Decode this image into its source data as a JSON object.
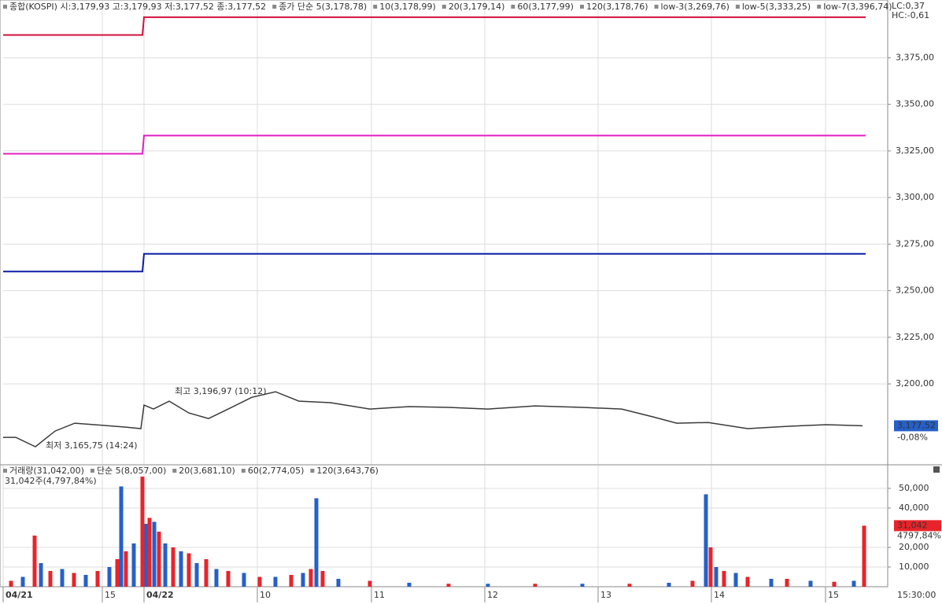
{
  "chart_data": [
    {
      "type": "line",
      "legend": [
        {
          "text": "종합(KOSPI) 시:3,179,93 고:3,179,93 저:3,177,52 종:3,177,52",
          "color": "#000000"
        },
        {
          "text": "종가 단순 5(3,178,78)",
          "color": "#c0208c"
        },
        {
          "text": "10(3,178,99)",
          "color": "#1a1a60"
        },
        {
          "text": "20(3,179,14)",
          "color": "#d8a000"
        },
        {
          "text": "60(3,177,99)",
          "color": "#208020"
        },
        {
          "text": "120(3,178,76)",
          "color": "#666666"
        },
        {
          "text": "low-3(3,269,76)",
          "color": "#0b1fa8"
        },
        {
          "text": "low-5(3,333,25)",
          "color": "#d020c0"
        },
        {
          "text": "low-7(3,396,74)",
          "color": "#d0103c"
        }
      ],
      "corner_labels": [
        "LC:0,37",
        "HC:-0,61"
      ],
      "last_label": "3,177,52",
      "last_change": "-0,08%",
      "annotations": [
        "최고 3,196,97 (10:12)",
        "최저 3,165,75 (14:24)"
      ],
      "series": [
        {
          "color": "#3a3a3a",
          "x": [
            0,
            16,
            41,
            66,
            91,
            116,
            156,
            175,
            179,
            191,
            211,
            236,
            261,
            286,
            316,
            346,
            376,
            416,
            466,
            516,
            566,
            616,
            676,
            736,
            786,
            826,
            856,
            896,
            946,
            996,
            1046,
            1092
          ],
          "values": [
            3171.3,
            3171.3,
            3166.3,
            3174.7,
            3178.9,
            3178.1,
            3176.8,
            3176,
            3188.6,
            3186.5,
            3190.7,
            3184.4,
            3181.4,
            3186.5,
            3192.8,
            3195.8,
            3190.7,
            3189.9,
            3186.5,
            3187.8,
            3187.4,
            3186.5,
            3188.2,
            3187.4,
            3186.5,
            3182.3,
            3178.9,
            3179.3,
            3176,
            3177.2,
            3178.1,
            3177.52
          ]
        },
        {
          "color": "#0b1fa8",
          "x": [
            0,
            177,
            179,
            1096
          ],
          "values": [
            3260.3,
            3260.3,
            3269.76,
            3269.76
          ]
        },
        {
          "color": "#e020c0",
          "x": [
            0,
            177,
            179,
            1096
          ],
          "values": [
            3323.5,
            3323.5,
            3333.25,
            3333.25
          ]
        },
        {
          "color": "#d0103c",
          "x": [
            0,
            177,
            179,
            1096
          ],
          "values": [
            3387.2,
            3387.2,
            3396.74,
            3396.74
          ]
        }
      ],
      "xlim": [
        0,
        1124
      ],
      "xticks": [
        126,
        179,
        323,
        468,
        612,
        756,
        900,
        1045
      ],
      "ylim": [
        3157,
        3406
      ],
      "yticks": [
        {
          "value": 3200,
          "label": "3,200,00"
        },
        {
          "value": 3225,
          "label": "3,225,00"
        },
        {
          "value": 3250,
          "label": "3,250,00"
        },
        {
          "value": 3275,
          "label": "3,275,00"
        },
        {
          "value": 3300,
          "label": "3,300,00"
        },
        {
          "value": 3325,
          "label": "3,325,00"
        },
        {
          "value": 3350,
          "label": "3,350,00"
        },
        {
          "value": 3375,
          "label": "3,375,00"
        }
      ],
      "grid": true
    },
    {
      "type": "bar",
      "legend": [
        {
          "text": "거래량(31,042,00)",
          "color": "#2a8a9a"
        },
        {
          "text": "단순 5(8,057,00)",
          "color": "#c0208c"
        },
        {
          "text": "20(3,681,10)",
          "color": "#d8a000"
        },
        {
          "text": "60(2,774,05)",
          "color": "#208020"
        },
        {
          "text": "120(3,643,76)",
          "color": "#666666"
        }
      ],
      "subtitle": "31,042주(4,797,84%)",
      "last_label": "31,042",
      "last_change": "4797,84%",
      "time_label": "15:30:00",
      "x": [
        10,
        25,
        40,
        48,
        60,
        75,
        90,
        105,
        120,
        135,
        145,
        150,
        156,
        166,
        177,
        182,
        186,
        192,
        198,
        206,
        216,
        226,
        236,
        246,
        258,
        271,
        286,
        306,
        326,
        346,
        366,
        381,
        391,
        398,
        406,
        426,
        466,
        516,
        566,
        616,
        676,
        736,
        796,
        846,
        876,
        893,
        899,
        906,
        916,
        931,
        946,
        976,
        996,
        1026,
        1056,
        1081,
        1094
      ],
      "values": [
        3000,
        5000,
        26000,
        12000,
        8000,
        9000,
        7000,
        6000,
        8000,
        10000,
        14000,
        51000,
        18000,
        22000,
        56000,
        32000,
        35000,
        33000,
        28000,
        22000,
        20000,
        18000,
        17000,
        12000,
        14000,
        9000,
        8000,
        7000,
        5000,
        5000,
        6000,
        7000,
        9000,
        45000,
        8000,
        4000,
        3000,
        2000,
        1500,
        1500,
        1500,
        1500,
        1500,
        2000,
        3000,
        47000,
        20000,
        10000,
        8000,
        7000,
        5000,
        4000,
        4000,
        3000,
        2500,
        3000,
        31042
      ],
      "colors": [
        "#e8242a",
        "#2660c8"
      ],
      "xlim": [
        0,
        1124
      ],
      "xticks": [
        {
          "value": 0,
          "label": "04/21"
        },
        {
          "value": 126,
          "label": "15"
        },
        {
          "value": 179,
          "label": "04/22"
        },
        {
          "value": 323,
          "label": "10"
        },
        {
          "value": 468,
          "label": "11"
        },
        {
          "value": 612,
          "label": "12"
        },
        {
          "value": 756,
          "label": "13"
        },
        {
          "value": 900,
          "label": "14"
        },
        {
          "value": 1045,
          "label": "15"
        }
      ],
      "ylim": [
        0,
        56400
      ],
      "yticks": [
        {
          "value": 10000,
          "label": "10,000"
        },
        {
          "value": 20000,
          "label": "20,000"
        },
        {
          "value": 40000,
          "label": "40,000"
        },
        {
          "value": 50000,
          "label": "50,000"
        }
      ],
      "grid": true
    }
  ]
}
